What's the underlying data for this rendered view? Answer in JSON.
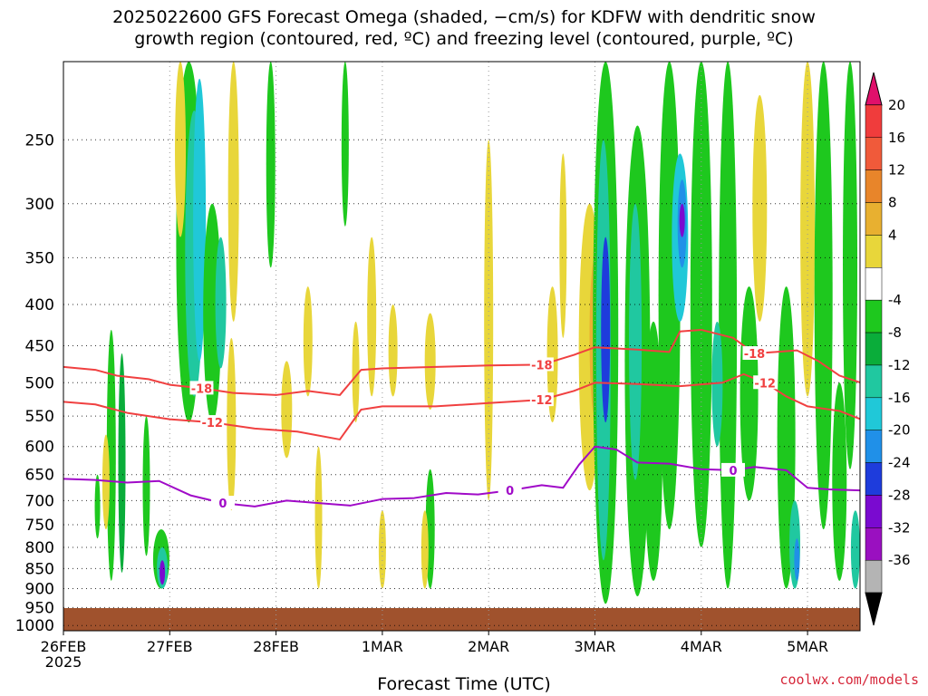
{
  "header": {
    "title_line1": "2025022600 GFS Forecast Omega (shaded, −cm/s) for KDFW with dendritic snow",
    "title_line2": "growth region (contoured, red, ºC) and freezing level (contoured, purple, ºC)"
  },
  "footer": {
    "credit": "coolwx.com/models"
  },
  "chart_data": {
    "type": "heatmap",
    "title": "2025022600 GFS Forecast Omega (shaded, −cm/s) for KDFW with dendritic snow growth region (contoured, red, ºC) and freezing level (contoured, purple, ºC)",
    "xlabel": "Forecast Time (UTC)",
    "ylabel": "",
    "x_ticks": [
      "26FEB\n2025",
      "27FEB",
      "28FEB",
      "1MAR",
      "2MAR",
      "3MAR",
      "4MAR",
      "5MAR"
    ],
    "x_range_days": [
      0,
      7.55
    ],
    "y_ticks": [
      250,
      300,
      350,
      400,
      450,
      500,
      550,
      600,
      650,
      700,
      750,
      800,
      850,
      900,
      950,
      1000
    ],
    "y_range_hpa": [
      200,
      1015
    ],
    "grid": true,
    "colorbar": {
      "labels": [
        20,
        16,
        12,
        8,
        4,
        -4,
        -8,
        -12,
        -16,
        -20,
        -24,
        -28,
        -32,
        -36
      ],
      "colors": [
        "#e0106b",
        "#f03c3c",
        "#f05a3a",
        "#e8852a",
        "#e8b030",
        "#e8d63a",
        "#ffffff",
        "#1ec81e",
        "#0aad3a",
        "#20c8a0",
        "#20c8d8",
        "#2090e8",
        "#1e3cdc",
        "#7a0ad0",
        "#9a10c0",
        "#b4b4b4",
        "#000000"
      ]
    },
    "series": [
      {
        "name": "-18",
        "color": "#f04040",
        "x": [
          0,
          0.3,
          0.5,
          0.8,
          1.0,
          1.3,
          1.6,
          2.0,
          2.3,
          2.6,
          2.8,
          3.0,
          3.5,
          4.0,
          4.5,
          4.8,
          5.0,
          5.4,
          5.7,
          5.8,
          6.0,
          6.3,
          6.5,
          6.7,
          6.9,
          7.1,
          7.3,
          7.5
        ],
        "y": [
          478,
          482,
          490,
          495,
          503,
          508,
          515,
          518,
          512,
          518,
          482,
          480,
          478,
          476,
          475,
          462,
          452,
          455,
          458,
          432,
          430,
          440,
          460,
          458,
          456,
          470,
          490,
          500
        ]
      },
      {
        "name": "-12",
        "color": "#f04040",
        "x": [
          0,
          0.3,
          0.6,
          1.0,
          1.4,
          1.8,
          2.2,
          2.6,
          2.8,
          3.0,
          3.5,
          4.0,
          4.5,
          4.8,
          5.0,
          5.4,
          5.8,
          6.2,
          6.4,
          6.6,
          6.8,
          7.0,
          7.3,
          7.5
        ],
        "y": [
          528,
          532,
          545,
          555,
          560,
          570,
          575,
          588,
          540,
          535,
          535,
          530,
          525,
          512,
          500,
          502,
          505,
          500,
          488,
          500,
          520,
          535,
          542,
          555
        ]
      },
      {
        "name": "0",
        "color": "#a00ac8",
        "x": [
          0,
          0.3,
          0.6,
          0.9,
          1.2,
          1.5,
          1.8,
          2.1,
          2.4,
          2.7,
          3.0,
          3.3,
          3.6,
          3.9,
          4.2,
          4.5,
          4.7,
          4.85,
          5.0,
          5.2,
          5.4,
          5.7,
          6.0,
          6.3,
          6.5,
          6.8,
          7.0,
          7.2,
          7.5
        ],
        "y": [
          658,
          660,
          665,
          662,
          690,
          705,
          712,
          700,
          705,
          710,
          697,
          695,
          685,
          688,
          680,
          670,
          675,
          632,
          600,
          605,
          628,
          630,
          640,
          642,
          636,
          642,
          675,
          678,
          680
        ]
      }
    ]
  }
}
